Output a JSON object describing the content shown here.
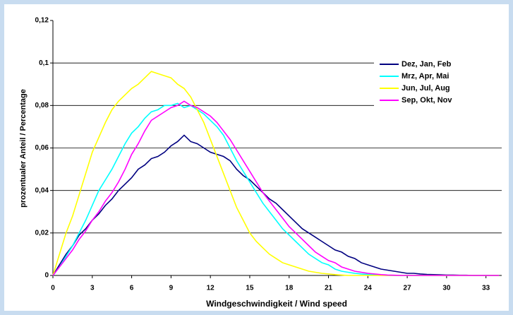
{
  "chart_data": {
    "type": "line",
    "x_label": "Windgeschwindigkeit / Wind speed",
    "y_label": "prozentualer Anteil / Percentage",
    "x": [
      0,
      0.5,
      1,
      1.5,
      2,
      2.5,
      3,
      3.5,
      4,
      4.5,
      5,
      5.5,
      6,
      6.5,
      7,
      7.5,
      8,
      8.5,
      9,
      9.5,
      10,
      10.5,
      11,
      11.5,
      12,
      12.5,
      13,
      13.5,
      14,
      14.5,
      15,
      15.5,
      16,
      16.5,
      17,
      17.5,
      18,
      18.5,
      19,
      19.5,
      20,
      20.5,
      21,
      21.5,
      22,
      22.5,
      23,
      23.5,
      24,
      24.5,
      25,
      25.5,
      26,
      26.5,
      27,
      27.5,
      28,
      28.5,
      29,
      29.5,
      30,
      30.5,
      31,
      31.5,
      32,
      32.5,
      33,
      33.5,
      34
    ],
    "series": [
      {
        "name": "Dez, Jan, Feb",
        "color": "#000080",
        "values": [
          0,
          0.005,
          0.01,
          0.014,
          0.019,
          0.022,
          0.026,
          0.029,
          0.033,
          0.036,
          0.04,
          0.043,
          0.046,
          0.05,
          0.052,
          0.055,
          0.056,
          0.058,
          0.061,
          0.063,
          0.066,
          0.063,
          0.062,
          0.06,
          0.058,
          0.057,
          0.056,
          0.054,
          0.05,
          0.047,
          0.045,
          0.042,
          0.039,
          0.036,
          0.034,
          0.031,
          0.028,
          0.025,
          0.022,
          0.02,
          0.018,
          0.016,
          0.014,
          0.012,
          0.011,
          0.009,
          0.008,
          0.006,
          0.005,
          0.004,
          0.003,
          0.0025,
          0.002,
          0.0015,
          0.001,
          0.001,
          0.0007,
          0.0005,
          0.0004,
          0.0003,
          0.0002,
          0.0002,
          0.0001,
          0.0001,
          0,
          0,
          0,
          0,
          0
        ]
      },
      {
        "name": "Mrz, Apr, Mai",
        "color": "#00ffff",
        "values": [
          0,
          0.004,
          0.009,
          0.014,
          0.02,
          0.026,
          0.033,
          0.04,
          0.045,
          0.05,
          0.056,
          0.062,
          0.067,
          0.07,
          0.074,
          0.077,
          0.078,
          0.08,
          0.08,
          0.081,
          0.079,
          0.08,
          0.078,
          0.076,
          0.073,
          0.07,
          0.066,
          0.06,
          0.054,
          0.049,
          0.044,
          0.039,
          0.034,
          0.03,
          0.026,
          0.022,
          0.019,
          0.016,
          0.013,
          0.01,
          0.008,
          0.006,
          0.005,
          0.003,
          0.002,
          0.0015,
          0.001,
          0.0007,
          0.0005,
          0.0003,
          0.0002,
          0,
          0,
          0,
          0,
          0,
          0,
          0,
          0,
          0,
          0,
          0,
          0,
          0,
          0,
          0,
          0,
          0,
          0
        ]
      },
      {
        "name": "Jun, Jul, Aug",
        "color": "#ffff00",
        "values": [
          0,
          0.01,
          0.02,
          0.028,
          0.038,
          0.048,
          0.058,
          0.065,
          0.072,
          0.078,
          0.082,
          0.085,
          0.088,
          0.09,
          0.093,
          0.096,
          0.095,
          0.094,
          0.093,
          0.09,
          0.088,
          0.084,
          0.078,
          0.072,
          0.064,
          0.056,
          0.048,
          0.04,
          0.032,
          0.026,
          0.02,
          0.016,
          0.013,
          0.01,
          0.008,
          0.006,
          0.005,
          0.004,
          0.003,
          0.002,
          0.0015,
          0.001,
          0.0007,
          0.0004,
          0.0002,
          0,
          0,
          0,
          0,
          0,
          0,
          0,
          0,
          0,
          0,
          0,
          0,
          0,
          0,
          0,
          0,
          0,
          0,
          0,
          0,
          0,
          0,
          0,
          0
        ]
      },
      {
        "name": "Sep, Okt, Nov",
        "color": "#ff00ff",
        "values": [
          0,
          0.004,
          0.008,
          0.012,
          0.017,
          0.021,
          0.026,
          0.03,
          0.035,
          0.039,
          0.044,
          0.05,
          0.057,
          0.062,
          0.068,
          0.073,
          0.075,
          0.077,
          0.079,
          0.08,
          0.082,
          0.08,
          0.079,
          0.077,
          0.075,
          0.072,
          0.068,
          0.064,
          0.059,
          0.054,
          0.049,
          0.044,
          0.039,
          0.035,
          0.031,
          0.027,
          0.023,
          0.02,
          0.017,
          0.014,
          0.011,
          0.009,
          0.007,
          0.006,
          0.004,
          0.003,
          0.002,
          0.0015,
          0.001,
          0.0007,
          0.0004,
          0.0002,
          0.0001,
          0,
          0,
          0,
          0,
          0,
          0,
          0,
          0,
          0,
          0,
          0,
          0,
          0,
          0,
          0,
          0
        ]
      }
    ],
    "xlim": [
      0,
      34.2
    ],
    "xticks": [
      0,
      3,
      6,
      9,
      12,
      15,
      18,
      21,
      24,
      27,
      30,
      33
    ],
    "ylim": [
      0,
      0.12
    ],
    "yticks": [
      0,
      {
        "value": 0.02,
        "label": "0,02"
      },
      {
        "value": 0.04,
        "label": "0,04"
      },
      {
        "value": 0.06,
        "label": "0,06"
      },
      {
        "value": 0.08,
        "label": "0,08"
      },
      {
        "value": 0.1,
        "label": "0,1"
      },
      {
        "value": 0.12,
        "label": "0,12"
      }
    ],
    "grid": true,
    "legend": "upper right"
  }
}
